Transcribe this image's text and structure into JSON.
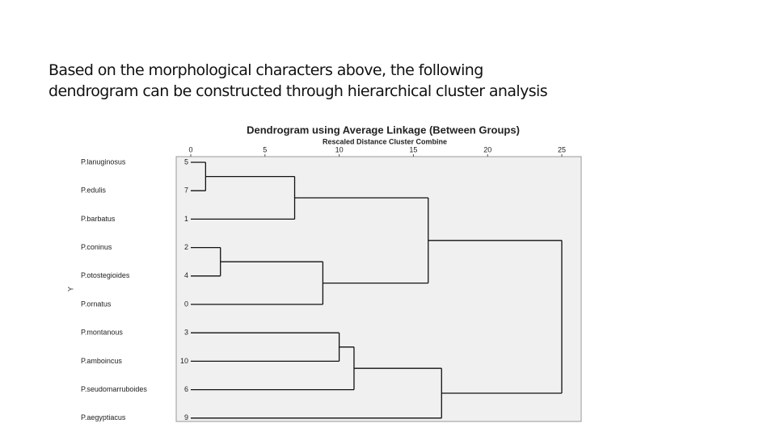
{
  "header": {
    "text_lines": [
      "Based on the morphological characters above, the following",
      "dendrogram can be constructed through hierarchical cluster analysis"
    ]
  },
  "chart_data": {
    "type": "dendrogram",
    "title": "Dendrogram using Average Linkage (Between Groups)",
    "subtitle": "Rescaled Distance Cluster Combine",
    "y_label": "Y",
    "leaves": [
      {
        "label": "P.lanuginosus",
        "id": 5
      },
      {
        "label": "P.edulis",
        "id": 7
      },
      {
        "label": "P.barbatus",
        "id": 1
      },
      {
        "label": "P.coninus",
        "id": 2
      },
      {
        "label": "P.otostegioides",
        "id": 4
      },
      {
        "label": "P.ornatus",
        "id": 0
      },
      {
        "label": "P.montanous",
        "id": 3
      },
      {
        "label": "P.amboincus",
        "id": 10
      },
      {
        "label": "P.seudomarruboides",
        "id": 6
      },
      {
        "label": "P.aegyptiacus",
        "id": 9
      }
    ],
    "merges": [
      {
        "children": [
          0,
          1
        ],
        "height": 1
      },
      {
        "children": [
          10,
          2
        ],
        "height": 7
      },
      {
        "children": [
          3,
          4
        ],
        "height": 2
      },
      {
        "children": [
          12,
          5
        ],
        "height": 8.9
      },
      {
        "children": [
          11,
          13
        ],
        "height": 16
      },
      {
        "children": [
          6,
          7
        ],
        "height": 10
      },
      {
        "children": [
          15,
          8
        ],
        "height": 11
      },
      {
        "children": [
          16,
          9
        ],
        "height": 16.9
      },
      {
        "children": [
          14,
          17
        ],
        "height": 25
      }
    ],
    "xlim": [
      0,
      25
    ],
    "xticks": [
      0,
      5,
      10,
      15,
      20,
      25
    ]
  }
}
